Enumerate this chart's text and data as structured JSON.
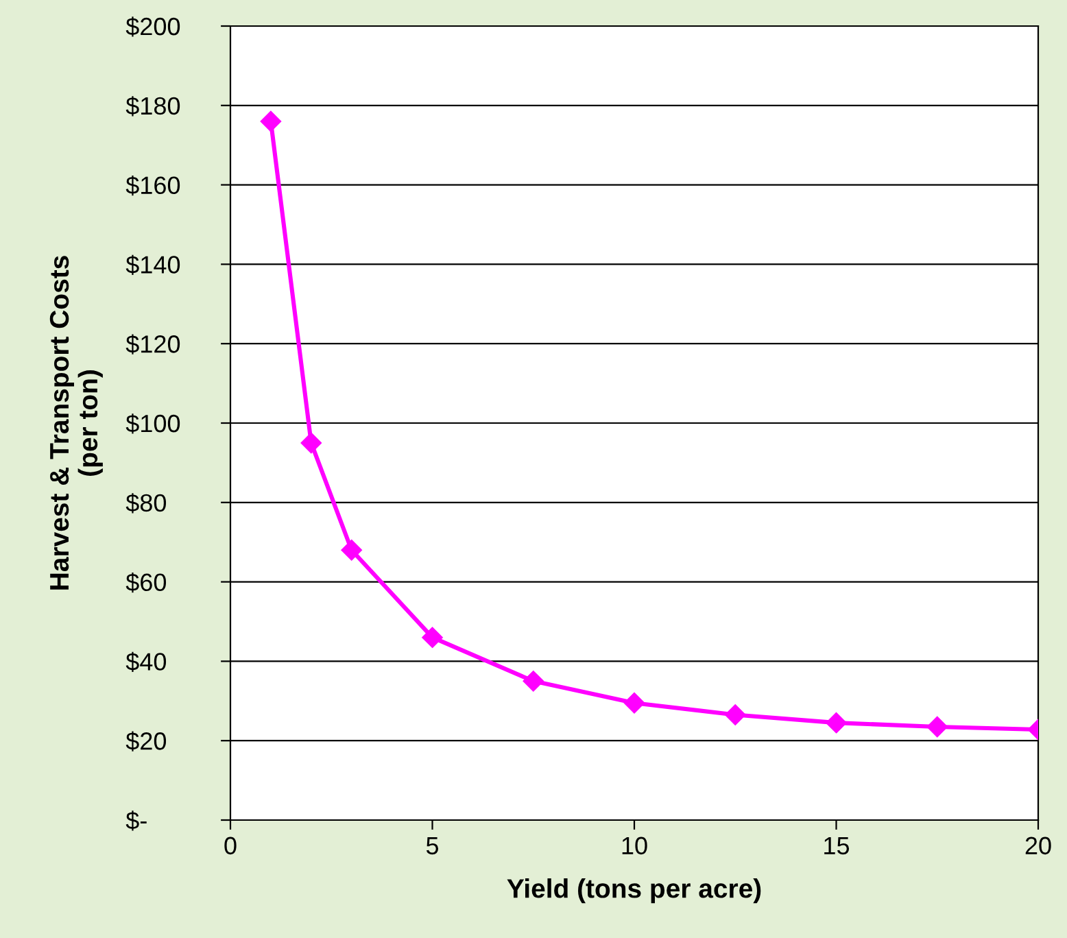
{
  "chart_data": {
    "type": "line",
    "xlabel": "Yield (tons per acre)",
    "ylabel": "Harvest & Transport Costs\n(per ton)",
    "x": [
      1,
      2,
      3,
      5,
      7.5,
      10,
      12.5,
      15,
      17.5,
      20
    ],
    "series": [
      {
        "color": "#ff00ff",
        "values": [
          176,
          95,
          68,
          46,
          35,
          29.5,
          26.5,
          24.5,
          23.5,
          22.8
        ]
      }
    ],
    "xlim": [
      0,
      20
    ],
    "xticks": [
      0,
      5,
      10,
      15,
      20
    ],
    "ylim": [
      0,
      200
    ],
    "yticks": [
      {
        "value": 0,
        "label": "$-"
      },
      {
        "value": 20,
        "label": "$20"
      },
      {
        "value": 40,
        "label": "$40"
      },
      {
        "value": 60,
        "label": "$60"
      },
      {
        "value": 80,
        "label": "$80"
      },
      {
        "value": 100,
        "label": "$100"
      },
      {
        "value": 120,
        "label": "$120"
      },
      {
        "value": 140,
        "label": "$140"
      },
      {
        "value": 160,
        "label": "$160"
      },
      {
        "value": 180,
        "label": "$180"
      },
      {
        "value": 200,
        "label": "$200"
      }
    ],
    "grid": "y",
    "marker": "diamond",
    "line_style": "solid"
  }
}
